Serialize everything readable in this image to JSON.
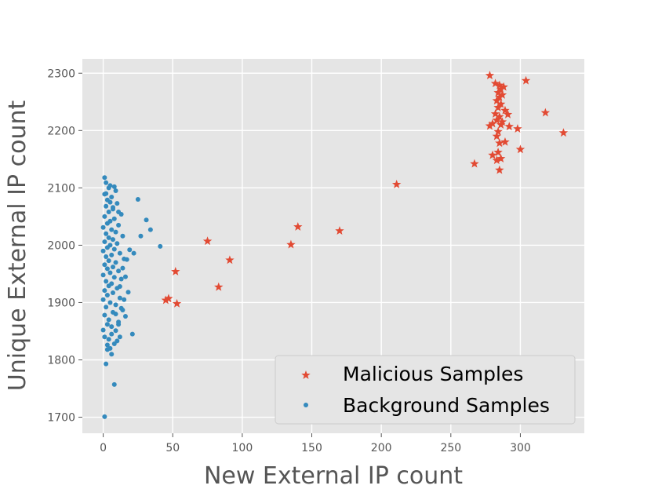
{
  "chart_data": {
    "type": "scatter",
    "title": "",
    "xlabel": "New External IP count",
    "ylabel": "Unique External IP count",
    "xlim": [
      -15,
      346
    ],
    "ylim": [
      1672,
      2325
    ],
    "xticks": [
      0,
      50,
      100,
      150,
      200,
      250,
      300
    ],
    "yticks": [
      1700,
      1800,
      1900,
      2000,
      2100,
      2200,
      2300
    ],
    "grid": true,
    "legend_position": "lower-right",
    "series": [
      {
        "name": "Malicious Samples",
        "marker": "star",
        "color": "#E24A33",
        "points": [
          [
            278,
            2296
          ],
          [
            304,
            2287
          ],
          [
            282,
            2282
          ],
          [
            285,
            2279
          ],
          [
            288,
            2276
          ],
          [
            286,
            2272
          ],
          [
            284,
            2266
          ],
          [
            287,
            2262
          ],
          [
            285,
            2258
          ],
          [
            283,
            2252
          ],
          [
            286,
            2246
          ],
          [
            284,
            2240
          ],
          [
            289,
            2235
          ],
          [
            318,
            2231
          ],
          [
            282,
            2229
          ],
          [
            291,
            2228
          ],
          [
            285,
            2224
          ],
          [
            283,
            2218
          ],
          [
            287,
            2215
          ],
          [
            280,
            2212
          ],
          [
            286,
            2210
          ],
          [
            278,
            2208
          ],
          [
            292,
            2207
          ],
          [
            298,
            2203
          ],
          [
            284,
            2198
          ],
          [
            331,
            2196
          ],
          [
            283,
            2190
          ],
          [
            289,
            2180
          ],
          [
            285,
            2178
          ],
          [
            300,
            2167
          ],
          [
            284,
            2162
          ],
          [
            280,
            2157
          ],
          [
            286,
            2151
          ],
          [
            283,
            2148
          ],
          [
            267,
            2142
          ],
          [
            285,
            2131
          ],
          [
            211,
            2106
          ],
          [
            140,
            2032
          ],
          [
            170,
            2025
          ],
          [
            75,
            2007
          ],
          [
            135,
            2001
          ],
          [
            91,
            1974
          ],
          [
            52,
            1954
          ],
          [
            83,
            1927
          ],
          [
            47,
            1907
          ],
          [
            45,
            1904
          ],
          [
            53,
            1898
          ]
        ]
      },
      {
        "name": "Background Samples",
        "marker": "circle",
        "color": "#348ABD",
        "points": [
          [
            1,
            1701
          ],
          [
            8,
            1757
          ],
          [
            2,
            1793
          ],
          [
            3,
            1818
          ],
          [
            5,
            1820
          ],
          [
            8,
            1828
          ],
          [
            10,
            1833
          ],
          [
            1,
            1840
          ],
          [
            21,
            1845
          ],
          [
            0,
            1852
          ],
          [
            6,
            1858
          ],
          [
            3,
            1862
          ],
          [
            11,
            1866
          ],
          [
            4,
            1870
          ],
          [
            1,
            1878
          ],
          [
            7,
            1883
          ],
          [
            14,
            1887
          ],
          [
            2,
            1892
          ],
          [
            9,
            1896
          ],
          [
            5,
            1900
          ],
          [
            0,
            1905
          ],
          [
            12,
            1908
          ],
          [
            3,
            1913
          ],
          [
            7,
            1917
          ],
          [
            1,
            1921
          ],
          [
            10,
            1925
          ],
          [
            4,
            1929
          ],
          [
            6,
            1933
          ],
          [
            2,
            1937
          ],
          [
            13,
            1941
          ],
          [
            8,
            1944
          ],
          [
            0,
            1948
          ],
          [
            5,
            1952
          ],
          [
            11,
            1955
          ],
          [
            3,
            1959
          ],
          [
            7,
            1962
          ],
          [
            1,
            1966
          ],
          [
            9,
            1970
          ],
          [
            4,
            1973
          ],
          [
            15,
            1976
          ],
          [
            2,
            1980
          ],
          [
            6,
            1983
          ],
          [
            12,
            1986
          ],
          [
            0,
            1990
          ],
          [
            8,
            1993
          ],
          [
            3,
            1996
          ],
          [
            5,
            2000
          ],
          [
            10,
            2003
          ],
          [
            1,
            2006
          ],
          [
            7,
            2010
          ],
          [
            4,
            2013
          ],
          [
            14,
            2016
          ],
          [
            2,
            2020
          ],
          [
            9,
            2023
          ],
          [
            6,
            2027
          ],
          [
            0,
            2031
          ],
          [
            11,
            2035
          ],
          [
            3,
            2038
          ],
          [
            5,
            2042
          ],
          [
            8,
            2046
          ],
          [
            1,
            2050
          ],
          [
            13,
            2054
          ],
          [
            4,
            2058
          ],
          [
            7,
            2063
          ],
          [
            2,
            2068
          ],
          [
            10,
            2073
          ],
          [
            3,
            2079
          ],
          [
            6,
            2084
          ],
          [
            1,
            2089
          ],
          [
            9,
            2095
          ],
          [
            4,
            2100
          ],
          [
            5,
            2104
          ],
          [
            2,
            2109
          ],
          [
            1,
            2118
          ],
          [
            25,
            2080
          ],
          [
            31,
            2044
          ],
          [
            34,
            2027
          ],
          [
            27,
            2016
          ],
          [
            41,
            1998
          ],
          [
            19,
            1992
          ],
          [
            22,
            1986
          ],
          [
            17,
            1975
          ],
          [
            14,
            1960
          ],
          [
            16,
            1945
          ],
          [
            12,
            1928
          ],
          [
            18,
            1918
          ],
          [
            15,
            1905
          ],
          [
            13,
            1890
          ],
          [
            16,
            1876
          ],
          [
            11,
            1862
          ],
          [
            9,
            1851
          ],
          [
            6,
            1845
          ],
          [
            4,
            1836
          ],
          [
            3,
            1826
          ],
          [
            12,
            1840
          ],
          [
            2,
            2090
          ],
          [
            5,
            2075
          ],
          [
            7,
            2066
          ],
          [
            11,
            2058
          ],
          [
            8,
            2102
          ],
          [
            6,
            1810
          ],
          [
            9,
            1880
          ]
        ]
      }
    ]
  }
}
